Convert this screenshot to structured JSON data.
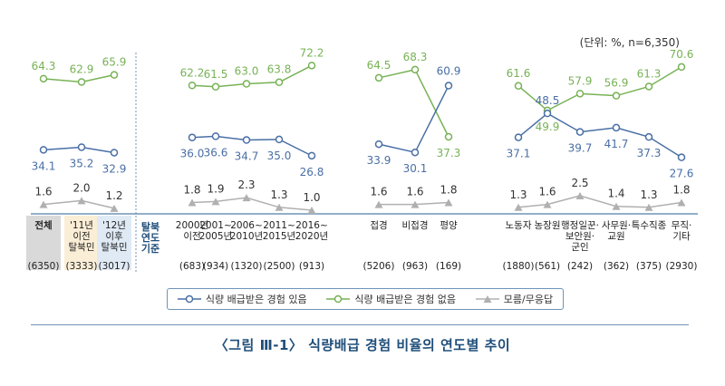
{
  "unit_note": "(단위: %, n=6,350)",
  "caption": "〈그림 Ⅲ-1〉 식량배급 경험 비율의 연도별 추이",
  "legend": {
    "yes": "식량 배급받은 경험 있음",
    "no": "식량 배급받은 경험 없음",
    "dk": "모름/무응답"
  },
  "colors": {
    "yes": "#4a6fa5",
    "no": "#77b255",
    "dk": "#b0b0b0",
    "axis": "#6f93b8"
  },
  "group_labels": {
    "period": "탈북\n연도\n기준"
  },
  "chart_data": {
    "type": "line",
    "series_names": [
      "식량 배급받은 경험 있음",
      "식량 배급받은 경험 없음",
      "모름/무응답"
    ],
    "groups": [
      {
        "categories": [
          "전체",
          "'11년\n이전\n탈북민",
          "'12년\n이후\n탈북민"
        ],
        "n": [
          "(6350)",
          "(3333)",
          "(3017)"
        ],
        "yes": [
          34.1,
          35.2,
          32.9
        ],
        "no": [
          64.3,
          62.9,
          65.9
        ],
        "dk": [
          1.6,
          2.0,
          1.2
        ]
      },
      {
        "categories": [
          "2000년\n이전",
          "2001~\n2005년",
          "2006~\n2010년",
          "2011~\n2015년",
          "2016~\n2020년"
        ],
        "n": [
          "(683)",
          "(934)",
          "(1320)",
          "(2500)",
          "(913)"
        ],
        "yes": [
          36.0,
          36.6,
          34.7,
          35.0,
          26.8
        ],
        "no": [
          62.2,
          61.5,
          63.0,
          63.8,
          72.2
        ],
        "dk": [
          1.8,
          1.9,
          2.3,
          1.3,
          1.0
        ]
      },
      {
        "categories": [
          "접경",
          "비접경",
          "평양"
        ],
        "n": [
          "(5206)",
          "(963)",
          "(169)"
        ],
        "yes": [
          33.9,
          30.1,
          60.9
        ],
        "no": [
          64.5,
          68.3,
          37.3
        ],
        "dk": [
          1.6,
          1.6,
          1.8
        ]
      },
      {
        "categories": [
          "노동자",
          "농장원",
          "행정일꾼·\n보안원·\n군인",
          "사무원·\n교원",
          "특수직종",
          "무직·\n기타"
        ],
        "n": [
          "(1880)",
          "(561)",
          "(242)",
          "(362)",
          "(375)",
          "(2930)"
        ],
        "yes": [
          37.1,
          48.5,
          39.7,
          41.7,
          37.3,
          27.6
        ],
        "no": [
          61.6,
          49.9,
          57.9,
          56.9,
          61.3,
          70.6
        ],
        "dk": [
          1.3,
          1.6,
          2.5,
          1.4,
          1.3,
          1.8
        ]
      }
    ]
  }
}
